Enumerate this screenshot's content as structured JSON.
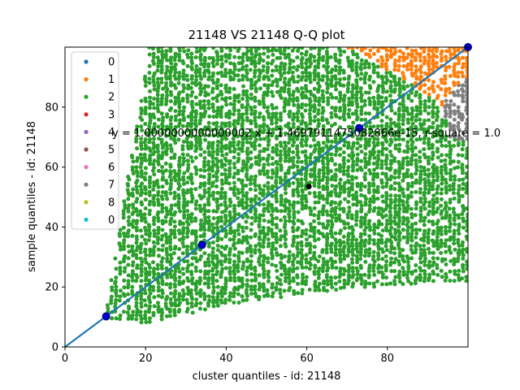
{
  "chart_data": {
    "type": "scatter",
    "title": "21148 VS 21148 Q-Q plot",
    "xlabel": "cluster quantiles - id: 21148",
    "ylabel": "sample quantiles - id: 21148",
    "xlim": [
      0,
      100
    ],
    "ylim": [
      0,
      100
    ],
    "x_ticks": [
      0,
      20,
      40,
      60,
      80
    ],
    "y_ticks": [
      0,
      20,
      40,
      60,
      80
    ],
    "grid": false,
    "legend_position": "top-left",
    "legend": [
      {
        "label": "0",
        "color": "#1f77b4"
      },
      {
        "label": "1",
        "color": "#ff7f0e"
      },
      {
        "label": "2",
        "color": "#2ca02c"
      },
      {
        "label": "3",
        "color": "#d62728"
      },
      {
        "label": "4",
        "color": "#9467bd"
      },
      {
        "label": "5",
        "color": "#8c564b"
      },
      {
        "label": "6",
        "color": "#e377c2"
      },
      {
        "label": "7",
        "color": "#7f7f7f"
      },
      {
        "label": "8",
        "color": "#bcbd22"
      },
      {
        "label": "0",
        "color": "#17becf"
      }
    ],
    "regions": [
      {
        "cluster": "2",
        "color": "#2ca02c",
        "polygon": [
          [
            10,
            10
          ],
          [
            21,
            100
          ],
          [
            70,
            100
          ],
          [
            88,
            86
          ],
          [
            100,
            72
          ],
          [
            100,
            22
          ],
          [
            78,
            20
          ],
          [
            60,
            18
          ],
          [
            40,
            14
          ],
          [
            20,
            8
          ],
          [
            10,
            9
          ]
        ]
      },
      {
        "cluster": "1",
        "color": "#ff7f0e",
        "polygon": [
          [
            70,
            100
          ],
          [
            100,
            100
          ],
          [
            100,
            80
          ],
          [
            95,
            79
          ],
          [
            88,
            86
          ]
        ]
      },
      {
        "cluster": "7",
        "color": "#7f7f7f",
        "polygon": [
          [
            94,
            83
          ],
          [
            100,
            90
          ],
          [
            100,
            68
          ],
          [
            95,
            70
          ]
        ]
      }
    ],
    "fit_line": {
      "slope": 1.0000000000000002,
      "intercept": 1.4697911475082865e-15,
      "color": "#1f77b4"
    },
    "fit_equation": "y = 1.0000000000000002 x + 1.4697911475082866e-15, r-square = 1.0",
    "quantile_points": [
      [
        10.2,
        10.2
      ],
      [
        34,
        34
      ],
      [
        73,
        73
      ],
      [
        100,
        100
      ]
    ],
    "quantile_color": "#0000cc",
    "centroid": [
      60.5,
      53.5
    ],
    "centroid_color": "#000000"
  }
}
